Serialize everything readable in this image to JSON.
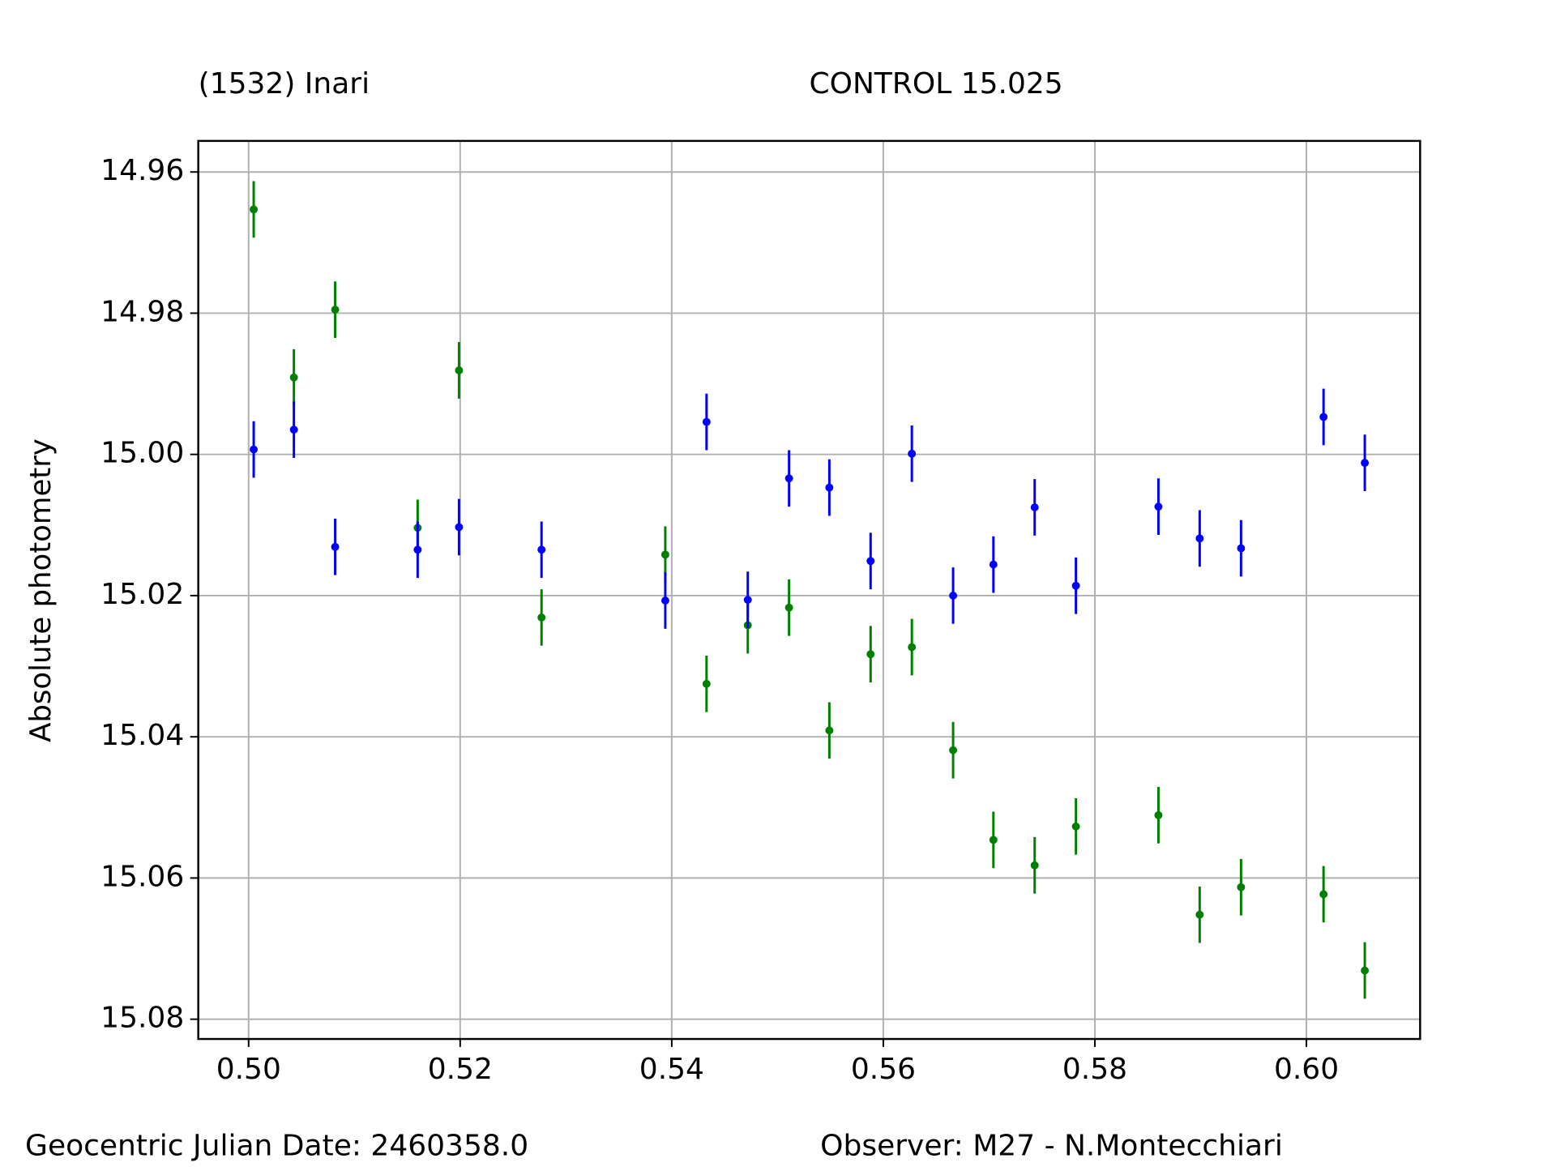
{
  "chart_data": {
    "type": "scatter",
    "ylabel": "Absolute photometry",
    "annotations": [
      "Geocentric Julian Date: 2460358.0",
      "Observer: M27 - N.Montecchiari"
    ],
    "xlim": [
      0.49524,
      0.61075
    ],
    "ylim": [
      15.0828,
      14.9556
    ],
    "xticks": [
      {
        "value": 0.5,
        "label": "0.50"
      },
      0.52,
      0.54,
      0.56,
      0.58,
      {
        "value": 0.6,
        "label": "0.60"
      }
    ],
    "yticks": [
      14.96,
      14.98,
      {
        "value": 15,
        "label": "15.00"
      },
      15.02,
      15.04,
      15.06,
      15.08
    ],
    "grid": true,
    "x": [
      0.50048,
      0.50428,
      0.50818,
      0.51598,
      0.51989,
      0.52769,
      0.53939,
      0.54329,
      0.54719,
      0.55109,
      0.5549,
      0.5588,
      0.5627,
      0.5666,
      0.57041,
      0.57431,
      0.57821,
      0.58601,
      0.58991,
      0.59382,
      0.60162,
      0.60552
    ],
    "series": [
      {
        "name": "(1532) Inari",
        "color": "#008000",
        "values": [
          14.9653,
          14.9891,
          14.9795,
          15.0104,
          14.9881,
          15.0231,
          15.0142,
          15.0325,
          15.0242,
          15.0217,
          15.0391,
          15.0283,
          15.0273,
          15.0419,
          15.0546,
          15.0582,
          15.0527,
          15.0511,
          15.0652,
          15.0613,
          15.0623,
          15.0731
        ],
        "errors": [
          0.004,
          0.004,
          0.004,
          0.004,
          0.004,
          0.004,
          0.004,
          0.004,
          0.004,
          0.004,
          0.004,
          0.004,
          0.004,
          0.004,
          0.004,
          0.004,
          0.004,
          0.004,
          0.004,
          0.004,
          0.004,
          0.004
        ]
      },
      {
        "name": "CONTROL 15.025",
        "color": "#0000ff",
        "values": [
          14.9993,
          14.9965,
          15.0131,
          15.0135,
          15.0103,
          15.0135,
          15.0207,
          14.9954,
          15.0206,
          15.0034,
          15.0047,
          15.0151,
          14.9999,
          15.02,
          15.0156,
          15.0075,
          15.0186,
          15.0074,
          15.0119,
          15.0133,
          14.9947,
          15.0012
        ],
        "errors": [
          0.004,
          0.004,
          0.004,
          0.004,
          0.004,
          0.004,
          0.004,
          0.004,
          0.004,
          0.004,
          0.004,
          0.004,
          0.004,
          0.004,
          0.004,
          0.004,
          0.004,
          0.004,
          0.004,
          0.004,
          0.004,
          0.004
        ]
      }
    ]
  }
}
